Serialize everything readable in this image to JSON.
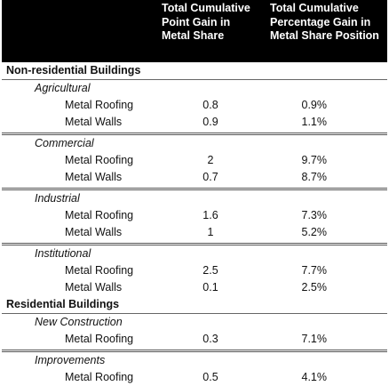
{
  "headers": {
    "col1": "Total Cumulative Point Gain in Metal Share",
    "col2": "Total Cumulative Percentage Gain in Metal Share Position"
  },
  "sections": [
    {
      "title": "Non-residential Buildings",
      "groups": [
        {
          "title": "Agricultural",
          "rows": [
            {
              "label": "Metal Roofing",
              "point_gain": "0.8",
              "pct_gain": "0.9%"
            },
            {
              "label": "Metal Walls",
              "point_gain": "0.9",
              "pct_gain": "1.1%"
            }
          ]
        },
        {
          "title": "Commercial",
          "rows": [
            {
              "label": "Metal Roofing",
              "point_gain": "2",
              "pct_gain": "9.7%"
            },
            {
              "label": "Metal Walls",
              "point_gain": "0.7",
              "pct_gain": "8.7%"
            }
          ]
        },
        {
          "title": "Industrial",
          "rows": [
            {
              "label": "Metal Roofing",
              "point_gain": "1.6",
              "pct_gain": "7.3%"
            },
            {
              "label": "Metal Walls",
              "point_gain": "1",
              "pct_gain": "5.2%"
            }
          ]
        },
        {
          "title": "Institutional",
          "rows": [
            {
              "label": "Metal Roofing",
              "point_gain": "2.5",
              "pct_gain": "7.7%"
            },
            {
              "label": "Metal Walls",
              "point_gain": "0.1",
              "pct_gain": "2.5%"
            }
          ]
        }
      ]
    },
    {
      "title": "Residential Buildings",
      "groups": [
        {
          "title": "New Construction",
          "rows": [
            {
              "label": "Metal Roofing",
              "point_gain": "0.3",
              "pct_gain": "7.1%"
            }
          ]
        },
        {
          "title": "Improvements",
          "rows": [
            {
              "label": "Metal Roofing",
              "point_gain": "0.5",
              "pct_gain": "4.1%"
            }
          ]
        }
      ]
    }
  ]
}
